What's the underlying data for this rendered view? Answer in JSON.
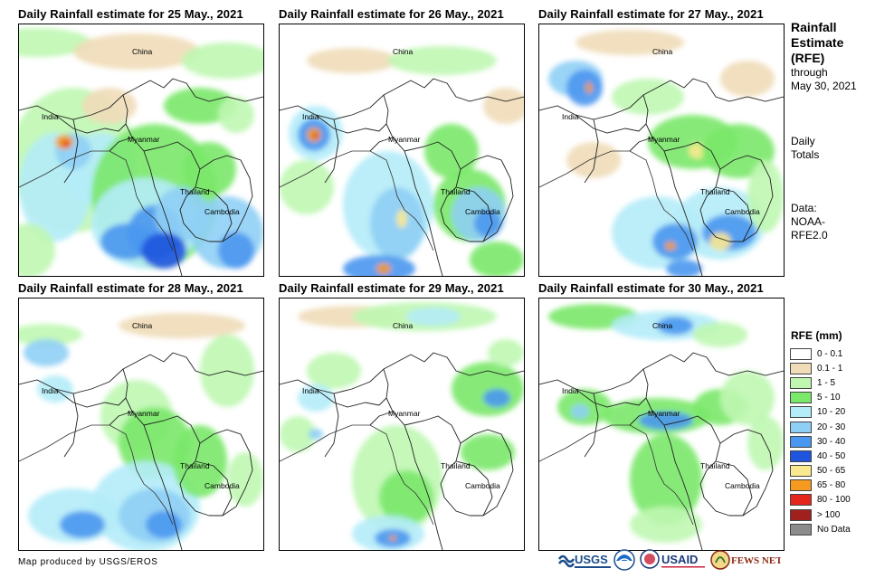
{
  "panels": [
    {
      "title": "Daily Rainfall estimate for 25 May., 2021"
    },
    {
      "title": "Daily Rainfall estimate for 26 May., 2021"
    },
    {
      "title": "Daily Rainfall estimate for 27 May., 2021"
    },
    {
      "title": "Daily Rainfall estimate for 28 May., 2021"
    },
    {
      "title": "Daily Rainfall estimate for 29 May., 2021"
    },
    {
      "title": "Daily Rainfall estimate for 30 May., 2021"
    }
  ],
  "map_labels": {
    "china": "China",
    "india": "India",
    "myanmar": "Myanmar",
    "thailand": "Thailand",
    "cambodia": "Cambodia"
  },
  "side_panel": {
    "title_line1": "Rainfall",
    "title_line2": "Estimate",
    "title_line3": "(RFE)",
    "through_line1": "through",
    "through_line2": "May 30, 2021",
    "daily_line1": "Daily",
    "daily_line2": "Totals",
    "data_line1": "Data:",
    "data_line2": "NOAA-",
    "data_line3": "RFE2.0"
  },
  "legend": {
    "title": "RFE (mm)",
    "items": [
      {
        "label": "0 - 0.1",
        "color": "#ffffff"
      },
      {
        "label": "0.1 - 1",
        "color": "#f0dcb8"
      },
      {
        "label": "1 - 5",
        "color": "#bff7b1"
      },
      {
        "label": "5 - 10",
        "color": "#7ae86a"
      },
      {
        "label": "10 - 20",
        "color": "#b4ecf8"
      },
      {
        "label": "20 - 30",
        "color": "#8fcff5"
      },
      {
        "label": "30 - 40",
        "color": "#4a97ef"
      },
      {
        "label": "40 - 50",
        "color": "#1f55de"
      },
      {
        "label": "50 - 65",
        "color": "#fbe98f"
      },
      {
        "label": "65 - 80",
        "color": "#f59a1f"
      },
      {
        "label": "80 - 100",
        "color": "#e5261c"
      },
      {
        "label": "> 100",
        "color": "#a01f1f"
      },
      {
        "label": "No Data",
        "color": "#8c8c8c"
      }
    ]
  },
  "footer": {
    "credit": "Map produced by USGS/EROS",
    "logo_usgs": "USGS",
    "logo_usaid": "USAID",
    "logo_fews": "FEWS NET"
  }
}
